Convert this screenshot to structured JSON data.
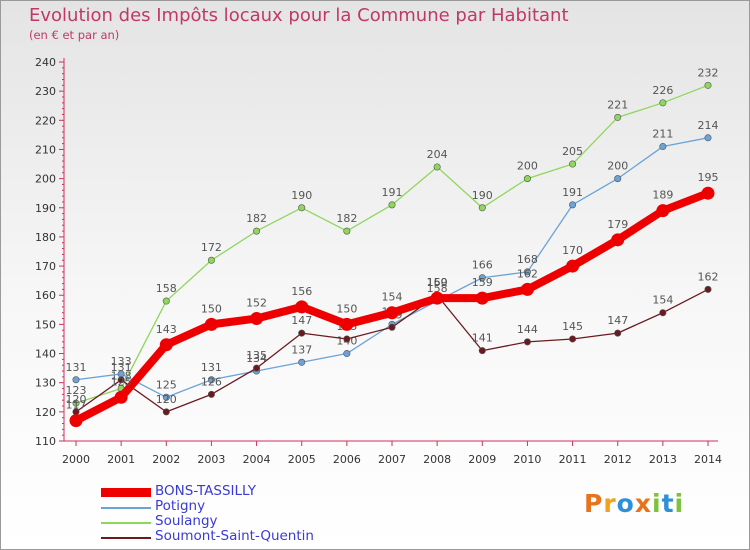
{
  "title": "Evolution des Impôts locaux pour la Commune par Habitant",
  "subtitle": "(en € et par an)",
  "logo": {
    "letters": [
      {
        "ch": "P",
        "color": "#e8731c"
      },
      {
        "ch": "r",
        "color": "#f0a21c"
      },
      {
        "ch": "o",
        "color": "#2f8fd8"
      },
      {
        "ch": "x",
        "color": "#e8731c"
      },
      {
        "ch": "i",
        "color": "#7cc23a"
      },
      {
        "ch": "t",
        "color": "#2f8fd8"
      },
      {
        "ch": "i",
        "color": "#7cc23a"
      }
    ]
  },
  "chart_data": {
    "type": "line",
    "title": "Evolution des Impôts locaux pour la Commune par Habitant",
    "subtitle": "(en € et par an)",
    "xlabel": "",
    "ylabel": "",
    "x": [
      "2000",
      "2001",
      "2002",
      "2003",
      "2004",
      "2005",
      "2006",
      "2007",
      "2008",
      "2009",
      "2010",
      "2011",
      "2012",
      "2013",
      "2014"
    ],
    "ylim": [
      110,
      240
    ],
    "yticks": [
      110,
      120,
      130,
      140,
      150,
      160,
      170,
      180,
      190,
      200,
      210,
      220,
      230,
      240
    ],
    "grid": false,
    "legend_position": "bottom-left",
    "series": [
      {
        "name": "Soulangy",
        "color": "#8fd65c",
        "values": [
          123,
          128,
          158,
          172,
          182,
          190,
          182,
          191,
          204,
          190,
          200,
          205,
          221,
          226,
          232
        ]
      },
      {
        "name": "Potigny",
        "color": "#6ba3d6",
        "values": [
          131,
          133,
          125,
          131,
          134,
          137,
          140,
          150,
          158,
          166,
          168,
          191,
          200,
          211,
          214
        ]
      },
      {
        "name": "Soumont-Saint-Quentin",
        "color": "#6b1a20",
        "values": [
          120,
          131,
          120,
          126,
          135,
          147,
          145,
          149,
          160,
          141,
          144,
          145,
          147,
          154,
          162
        ]
      },
      {
        "name": "BONS-TASSILLY",
        "color": "#ee0000",
        "values": [
          117,
          125,
          143,
          150,
          152,
          156,
          150,
          154,
          159,
          159,
          162,
          170,
          179,
          189,
          195
        ]
      }
    ],
    "legend_order": [
      "BONS-TASSILLY",
      "Potigny",
      "Soulangy",
      "Soumont-Saint-Quentin"
    ]
  }
}
